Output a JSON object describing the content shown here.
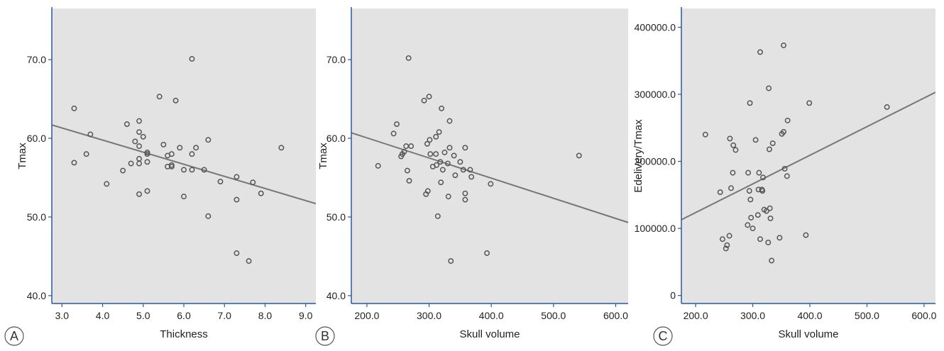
{
  "colors": {
    "plot_background": "#e3e3e3",
    "axis": "#2a56a8",
    "point_stroke": "#555555",
    "fit_line": "#777777",
    "panel_letter_stroke": "#555555"
  },
  "chart_data": [
    {
      "type": "scatter",
      "panel_label": "A",
      "xlabel": "Thickness",
      "ylabel": "Tmax",
      "xlim": [
        2.75,
        9.25
      ],
      "ylim": [
        39.0,
        76.5
      ],
      "xticks": [
        3.0,
        4.0,
        5.0,
        6.0,
        7.0,
        8.0,
        9.0
      ],
      "xtick_labels": [
        "3.0",
        "4.0",
        "5.0",
        "6.0",
        "7.0",
        "8.0",
        "9.0"
      ],
      "yticks": [
        40.0,
        50.0,
        60.0,
        70.0
      ],
      "ytick_labels": [
        "40.0",
        "50.0",
        "60.0",
        "70.0"
      ],
      "grid": false,
      "fit_line": {
        "x": [
          2.75,
          9.25
        ],
        "y": [
          61.7,
          51.7
        ]
      },
      "points": [
        {
          "x": 3.3,
          "y": 63.8
        },
        {
          "x": 3.3,
          "y": 56.9
        },
        {
          "x": 3.6,
          "y": 58.0
        },
        {
          "x": 3.7,
          "y": 60.5
        },
        {
          "x": 4.1,
          "y": 54.2
        },
        {
          "x": 4.5,
          "y": 55.9
        },
        {
          "x": 4.6,
          "y": 61.8
        },
        {
          "x": 4.7,
          "y": 56.8
        },
        {
          "x": 4.8,
          "y": 59.6
        },
        {
          "x": 4.9,
          "y": 62.2
        },
        {
          "x": 4.9,
          "y": 60.8
        },
        {
          "x": 4.9,
          "y": 59.0
        },
        {
          "x": 4.9,
          "y": 57.4
        },
        {
          "x": 4.9,
          "y": 56.8
        },
        {
          "x": 4.9,
          "y": 52.9
        },
        {
          "x": 5.0,
          "y": 60.2
        },
        {
          "x": 5.1,
          "y": 58.2
        },
        {
          "x": 5.1,
          "y": 58.0
        },
        {
          "x": 5.1,
          "y": 57.0
        },
        {
          "x": 5.1,
          "y": 53.3
        },
        {
          "x": 5.4,
          "y": 65.3
        },
        {
          "x": 5.5,
          "y": 59.2
        },
        {
          "x": 5.6,
          "y": 57.8
        },
        {
          "x": 5.6,
          "y": 56.4
        },
        {
          "x": 5.7,
          "y": 58.0
        },
        {
          "x": 5.7,
          "y": 56.6
        },
        {
          "x": 5.7,
          "y": 56.4
        },
        {
          "x": 5.8,
          "y": 64.8
        },
        {
          "x": 5.9,
          "y": 58.8
        },
        {
          "x": 6.0,
          "y": 56.0
        },
        {
          "x": 6.0,
          "y": 52.6
        },
        {
          "x": 6.2,
          "y": 70.1
        },
        {
          "x": 6.2,
          "y": 58.0
        },
        {
          "x": 6.2,
          "y": 56.0
        },
        {
          "x": 6.3,
          "y": 58.8
        },
        {
          "x": 6.5,
          "y": 56.0
        },
        {
          "x": 6.6,
          "y": 59.8
        },
        {
          "x": 6.6,
          "y": 50.1
        },
        {
          "x": 6.9,
          "y": 54.5
        },
        {
          "x": 7.3,
          "y": 55.1
        },
        {
          "x": 7.3,
          "y": 52.2
        },
        {
          "x": 7.3,
          "y": 45.4
        },
        {
          "x": 7.6,
          "y": 44.4
        },
        {
          "x": 7.7,
          "y": 54.4
        },
        {
          "x": 7.9,
          "y": 53.0
        },
        {
          "x": 8.4,
          "y": 58.8
        }
      ]
    },
    {
      "type": "scatter",
      "panel_label": "B",
      "xlabel": "Skull volume",
      "ylabel": "Tmax",
      "xlim": [
        175,
        620
      ],
      "ylim": [
        39.0,
        76.5
      ],
      "xticks": [
        200,
        300,
        400,
        500,
        600
      ],
      "xtick_labels": [
        "200.0",
        "300.0",
        "400.0",
        "500.0",
        "600.0"
      ],
      "yticks": [
        40.0,
        50.0,
        60.0,
        70.0
      ],
      "ytick_labels": [
        "40.0",
        "50.0",
        "60.0",
        "70.0"
      ],
      "grid": false,
      "fit_line": {
        "x": [
          175,
          620
        ],
        "y": [
          60.7,
          49.3
        ]
      },
      "points": [
        {
          "x": 218,
          "y": 56.5
        },
        {
          "x": 243,
          "y": 60.6
        },
        {
          "x": 248,
          "y": 61.8
        },
        {
          "x": 255,
          "y": 57.7
        },
        {
          "x": 257,
          "y": 58.0
        },
        {
          "x": 260,
          "y": 58.3
        },
        {
          "x": 263,
          "y": 59.0
        },
        {
          "x": 265,
          "y": 55.9
        },
        {
          "x": 267,
          "y": 70.2
        },
        {
          "x": 268,
          "y": 54.6
        },
        {
          "x": 271,
          "y": 59.0
        },
        {
          "x": 292,
          "y": 64.8
        },
        {
          "x": 295,
          "y": 52.9
        },
        {
          "x": 297,
          "y": 59.3
        },
        {
          "x": 298,
          "y": 53.3
        },
        {
          "x": 300,
          "y": 65.3
        },
        {
          "x": 301,
          "y": 59.8
        },
        {
          "x": 302,
          "y": 58.0
        },
        {
          "x": 306,
          "y": 56.4
        },
        {
          "x": 311,
          "y": 60.2
        },
        {
          "x": 311,
          "y": 58.0
        },
        {
          "x": 312,
          "y": 56.6
        },
        {
          "x": 314,
          "y": 50.1
        },
        {
          "x": 316,
          "y": 60.8
        },
        {
          "x": 318,
          "y": 57.0
        },
        {
          "x": 319,
          "y": 54.4
        },
        {
          "x": 320,
          "y": 63.8
        },
        {
          "x": 322,
          "y": 56.0
        },
        {
          "x": 325,
          "y": 58.2
        },
        {
          "x": 330,
          "y": 56.8
        },
        {
          "x": 331,
          "y": 52.6
        },
        {
          "x": 333,
          "y": 58.8
        },
        {
          "x": 333,
          "y": 62.2
        },
        {
          "x": 335,
          "y": 44.4
        },
        {
          "x": 340,
          "y": 57.8
        },
        {
          "x": 342,
          "y": 55.3
        },
        {
          "x": 350,
          "y": 57.0
        },
        {
          "x": 355,
          "y": 56.0
        },
        {
          "x": 358,
          "y": 58.8
        },
        {
          "x": 358,
          "y": 53.0
        },
        {
          "x": 358,
          "y": 52.2
        },
        {
          "x": 366,
          "y": 56.0
        },
        {
          "x": 368,
          "y": 55.1
        },
        {
          "x": 393,
          "y": 45.4
        },
        {
          "x": 399,
          "y": 54.2
        },
        {
          "x": 541,
          "y": 57.8
        }
      ]
    },
    {
      "type": "scatter",
      "panel_label": "C",
      "xlabel": "Skull volume",
      "ylabel": "Edelivery/Tmax",
      "xlim": [
        175,
        620
      ],
      "ylim": [
        -12000,
        428000
      ],
      "xticks": [
        200,
        300,
        400,
        500,
        600
      ],
      "xtick_labels": [
        "200.0",
        "300.0",
        "400.0",
        "500.0",
        "600.0"
      ],
      "yticks": [
        0,
        100000,
        200000,
        300000,
        400000
      ],
      "ytick_labels": [
        "0",
        "100000.0",
        "200000.0",
        "300000.0",
        "400000.0"
      ],
      "grid": false,
      "fit_line": {
        "x": [
          175,
          620
        ],
        "y": [
          113000,
          303000
        ]
      },
      "points": [
        {
          "x": 217,
          "y": 240000
        },
        {
          "x": 243,
          "y": 154000
        },
        {
          "x": 247,
          "y": 84000
        },
        {
          "x": 253,
          "y": 70000
        },
        {
          "x": 255,
          "y": 75000
        },
        {
          "x": 259,
          "y": 89000
        },
        {
          "x": 260,
          "y": 234000
        },
        {
          "x": 262,
          "y": 160000
        },
        {
          "x": 265,
          "y": 183000
        },
        {
          "x": 266,
          "y": 224000
        },
        {
          "x": 270,
          "y": 217000
        },
        {
          "x": 291,
          "y": 105000
        },
        {
          "x": 292,
          "y": 183000
        },
        {
          "x": 294,
          "y": 156000
        },
        {
          "x": 295,
          "y": 287000
        },
        {
          "x": 296,
          "y": 143000
        },
        {
          "x": 297,
          "y": 116000
        },
        {
          "x": 300,
          "y": 100000
        },
        {
          "x": 305,
          "y": 232000
        },
        {
          "x": 309,
          "y": 120000
        },
        {
          "x": 310,
          "y": 158000
        },
        {
          "x": 311,
          "y": 183000
        },
        {
          "x": 313,
          "y": 84000
        },
        {
          "x": 313,
          "y": 363000
        },
        {
          "x": 316,
          "y": 158000
        },
        {
          "x": 317,
          "y": 156000
        },
        {
          "x": 318,
          "y": 176000
        },
        {
          "x": 320,
          "y": 128000
        },
        {
          "x": 324,
          "y": 126000
        },
        {
          "x": 327,
          "y": 79000
        },
        {
          "x": 328,
          "y": 309000
        },
        {
          "x": 329,
          "y": 218000
        },
        {
          "x": 330,
          "y": 130000
        },
        {
          "x": 331,
          "y": 115000
        },
        {
          "x": 333,
          "y": 52000
        },
        {
          "x": 335,
          "y": 227000
        },
        {
          "x": 347,
          "y": 86000
        },
        {
          "x": 351,
          "y": 241000
        },
        {
          "x": 354,
          "y": 244000
        },
        {
          "x": 354,
          "y": 373000
        },
        {
          "x": 356,
          "y": 189000
        },
        {
          "x": 360,
          "y": 178000
        },
        {
          "x": 361,
          "y": 261000
        },
        {
          "x": 393,
          "y": 90000
        },
        {
          "x": 399,
          "y": 287000
        },
        {
          "x": 535,
          "y": 281000
        }
      ]
    }
  ]
}
